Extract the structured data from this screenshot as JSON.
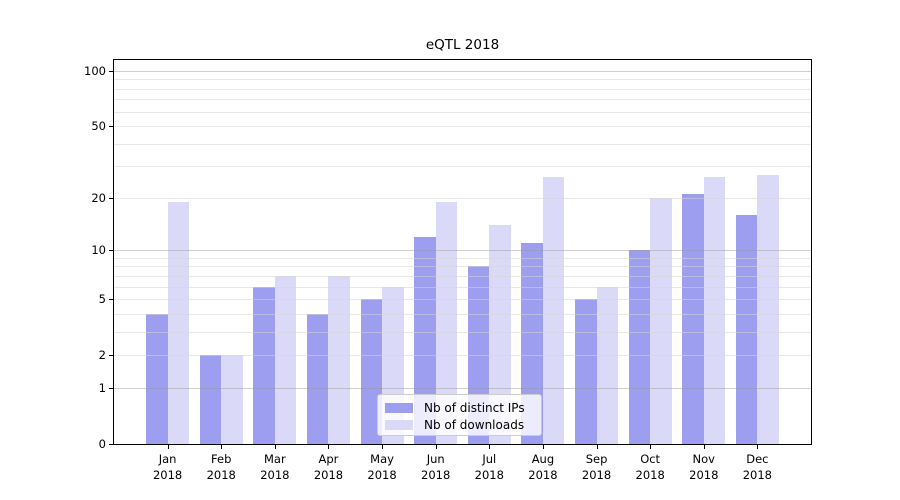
{
  "title": "eQTL 2018",
  "chart_data": {
    "type": "bar",
    "title": "eQTL 2018",
    "categories": [
      "Jan",
      "Feb",
      "Mar",
      "Apr",
      "May",
      "Jun",
      "Jul",
      "Aug",
      "Sep",
      "Oct",
      "Nov",
      "Dec"
    ],
    "category_year": "2018",
    "series": [
      {
        "name": "Nb of distinct IPs",
        "color": "#9e9ef0",
        "values": [
          4,
          2,
          6,
          4,
          5,
          12,
          8,
          11,
          5,
          10,
          21,
          16
        ]
      },
      {
        "name": "Nb of downloads",
        "color": "#dadaf8",
        "values": [
          19,
          2,
          7,
          7,
          6,
          19,
          14,
          26,
          6,
          20,
          26,
          27
        ]
      }
    ],
    "xlabel": "",
    "ylabel": "",
    "y_scale": "log10(1+y)",
    "y_ticks": [
      0,
      1,
      2,
      5,
      10,
      20,
      50,
      100
    ],
    "y_major_gridlines": [
      1,
      10,
      100
    ],
    "y_minor_gridlines": [
      2,
      3,
      4,
      5,
      6,
      7,
      8,
      9,
      20,
      30,
      40,
      50,
      60,
      70,
      80,
      90
    ],
    "ylim": [
      0,
      115
    ],
    "grid": true,
    "legend_position": "lower center"
  },
  "colors": {
    "background": "#ffffff",
    "spine": "#000000",
    "major_grid": "#c9c9c9",
    "minor_grid": "#e8e8e8",
    "legend_border": "#cccccc"
  }
}
